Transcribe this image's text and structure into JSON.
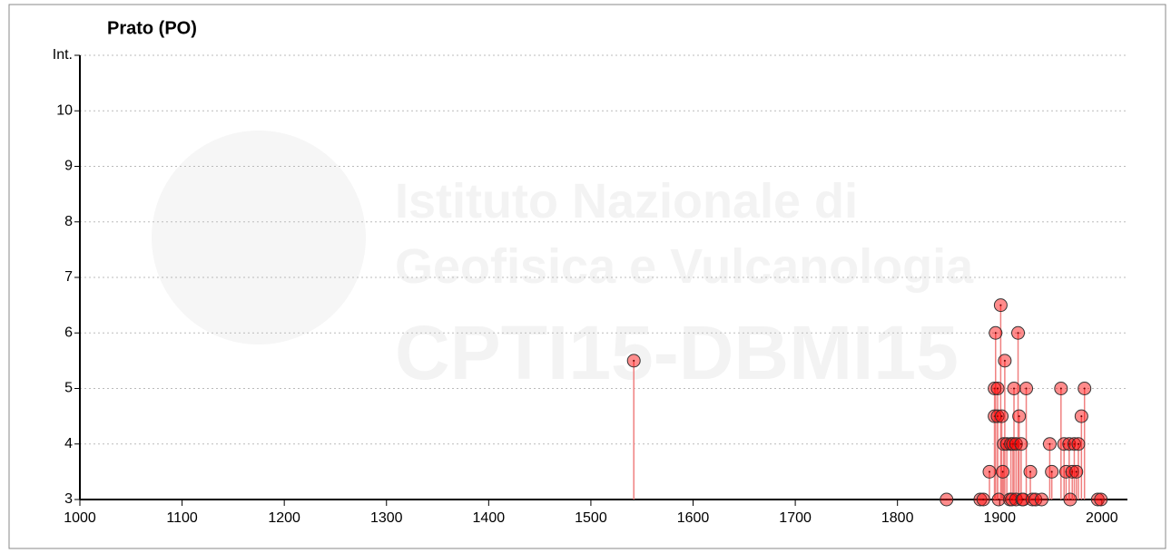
{
  "chart_data": {
    "type": "stem",
    "title": "Prato (PO)",
    "watermark": [
      "Istituto Nazionale di",
      "Geofisica e Vulcanologia",
      "CPTI15-DBMI15"
    ],
    "x": [
      1542,
      1848,
      1881,
      1884,
      1890,
      1895,
      1895,
      1896,
      1898,
      1898,
      1899,
      1901,
      1902,
      1903,
      1904,
      1905,
      1907,
      1910,
      1911,
      1912,
      1913,
      1914,
      1916,
      1916,
      1918,
      1919,
      1921,
      1922,
      1923,
      1926,
      1930,
      1932,
      1935,
      1941,
      1949,
      1951,
      1960,
      1963,
      1965,
      1968,
      1969,
      1971,
      1973,
      1975,
      1977,
      1980,
      1983,
      1996,
      1999
    ],
    "values": [
      5.5,
      3,
      3,
      3,
      3.5,
      4.5,
      5,
      6,
      5,
      4.5,
      3,
      6.5,
      4.5,
      3.5,
      4,
      5.5,
      4,
      3,
      4,
      3,
      4,
      5,
      3,
      4,
      6,
      4.5,
      4,
      3,
      3,
      5,
      3.5,
      3,
      3,
      3,
      4,
      3.5,
      5,
      4,
      3.5,
      4,
      3,
      3.5,
      4,
      3.5,
      4,
      4.5,
      5,
      3,
      3
    ],
    "color": "#ff0000",
    "stem_color": "#f08080",
    "xlim": [
      1000,
      2025
    ],
    "xticks": [
      1000,
      1100,
      1200,
      1300,
      1400,
      1500,
      1600,
      1700,
      1800,
      1900,
      2000
    ],
    "ylim": [
      3,
      11
    ],
    "yticks": [
      3,
      4,
      5,
      6,
      7,
      8,
      9,
      10,
      {
        "value": 11,
        "label": "Int."
      }
    ],
    "grid": true
  }
}
